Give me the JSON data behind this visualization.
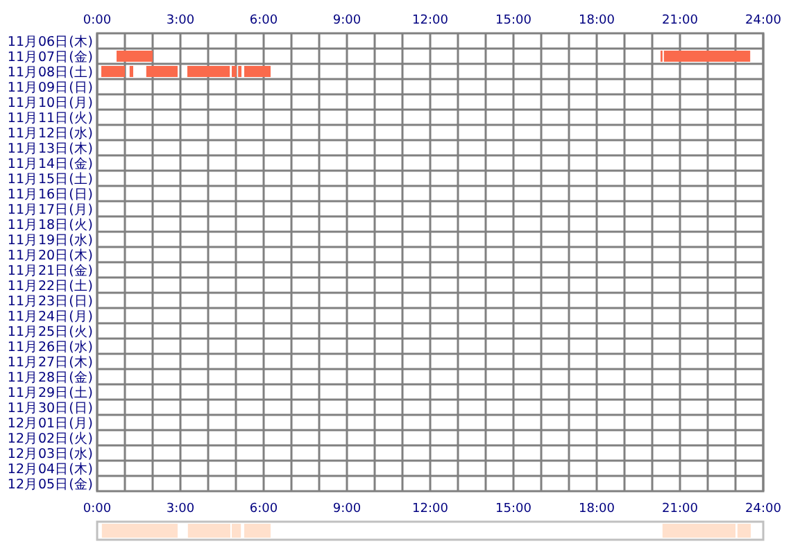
{
  "chart_data": [
    {
      "type": "bar",
      "orientation": "horizontal",
      "grid": true,
      "categories": [
        "11月06日(木)",
        "11月07日(金)",
        "11月08日(土)",
        "11月09日(日)",
        "11月10日(月)",
        "11月11日(火)",
        "11月12日(水)",
        "11月13日(木)",
        "11月14日(金)",
        "11月15日(土)",
        "11月16日(日)",
        "11月17日(月)",
        "11月18日(火)",
        "11月19日(水)",
        "11月20日(木)",
        "11月21日(金)",
        "11月22日(土)",
        "11月23日(日)",
        "11月24日(月)",
        "11月25日(火)",
        "11月26日(水)",
        "11月27日(木)",
        "11月28日(金)",
        "11月29日(土)",
        "11月30日(日)",
        "12月01日(月)",
        "12月02日(火)",
        "12月03日(水)",
        "12月04日(木)",
        "12月05日(金)"
      ],
      "xlim": [
        0,
        24
      ],
      "xticks": [
        {
          "value": 0,
          "label": "0:00"
        },
        {
          "value": 1,
          "label": null
        },
        {
          "value": 2,
          "label": null
        },
        {
          "value": 3,
          "label": "3:00"
        },
        {
          "value": 4,
          "label": null
        },
        {
          "value": 5,
          "label": null
        },
        {
          "value": 6,
          "label": "6:00"
        },
        {
          "value": 7,
          "label": null
        },
        {
          "value": 8,
          "label": null
        },
        {
          "value": 9,
          "label": "9:00"
        },
        {
          "value": 10,
          "label": null
        },
        {
          "value": 11,
          "label": null
        },
        {
          "value": 12,
          "label": "12:00"
        },
        {
          "value": 13,
          "label": null
        },
        {
          "value": 14,
          "label": null
        },
        {
          "value": 15,
          "label": "15:00"
        },
        {
          "value": 16,
          "label": null
        },
        {
          "value": 17,
          "label": null
        },
        {
          "value": 18,
          "label": "18:00"
        },
        {
          "value": 19,
          "label": null
        },
        {
          "value": 20,
          "label": null
        },
        {
          "value": 21,
          "label": "21:00"
        },
        {
          "value": 22,
          "label": null
        },
        {
          "value": 23,
          "label": null
        },
        {
          "value": 24,
          "label": "24:00"
        }
      ],
      "series": [
        {
          "color": "#fa6a4c",
          "base": [
            null,
            0.7,
            0.15,
            null,
            null,
            null,
            null,
            null,
            null,
            null,
            null,
            null,
            null,
            null,
            null,
            null,
            null,
            null,
            null,
            null,
            null,
            null,
            null,
            null,
            null,
            null,
            null,
            null,
            null,
            null
          ],
          "values": [
            null,
            1.3,
            0.85,
            null,
            null,
            null,
            null,
            null,
            null,
            null,
            null,
            null,
            null,
            null,
            null,
            null,
            null,
            null,
            null,
            null,
            null,
            null,
            null,
            null,
            null,
            null,
            null,
            null,
            null,
            null
          ]
        },
        {
          "color": "#fa6a4c",
          "base": [
            null,
            20.3,
            1.17,
            null,
            null,
            null,
            null,
            null,
            null,
            null,
            null,
            null,
            null,
            null,
            null,
            null,
            null,
            null,
            null,
            null,
            null,
            null,
            null,
            null,
            null,
            null,
            null,
            null,
            null,
            null
          ],
          "values": [
            null,
            0.07,
            0.13,
            null,
            null,
            null,
            null,
            null,
            null,
            null,
            null,
            null,
            null,
            null,
            null,
            null,
            null,
            null,
            null,
            null,
            null,
            null,
            null,
            null,
            null,
            null,
            null,
            null,
            null,
            null
          ]
        },
        {
          "color": "#fa6a4c",
          "base": [
            null,
            20.42,
            1.77,
            null,
            null,
            null,
            null,
            null,
            null,
            null,
            null,
            null,
            null,
            null,
            null,
            null,
            null,
            null,
            null,
            null,
            null,
            null,
            null,
            null,
            null,
            null,
            null,
            null,
            null,
            null
          ],
          "values": [
            null,
            3.11,
            1.13,
            null,
            null,
            null,
            null,
            null,
            null,
            null,
            null,
            null,
            null,
            null,
            null,
            null,
            null,
            null,
            null,
            null,
            null,
            null,
            null,
            null,
            null,
            null,
            null,
            null,
            null,
            null
          ]
        },
        {
          "color": "#fa6a4c",
          "base": [
            null,
            null,
            3.25,
            null,
            null,
            null,
            null,
            null,
            null,
            null,
            null,
            null,
            null,
            null,
            null,
            null,
            null,
            null,
            null,
            null,
            null,
            null,
            null,
            null,
            null,
            null,
            null,
            null,
            null,
            null
          ],
          "values": [
            null,
            null,
            1.53,
            null,
            null,
            null,
            null,
            null,
            null,
            null,
            null,
            null,
            null,
            null,
            null,
            null,
            null,
            null,
            null,
            null,
            null,
            null,
            null,
            null,
            null,
            null,
            null,
            null,
            null,
            null
          ]
        },
        {
          "color": "#fa6a4c",
          "base": [
            null,
            null,
            4.85,
            null,
            null,
            null,
            null,
            null,
            null,
            null,
            null,
            null,
            null,
            null,
            null,
            null,
            null,
            null,
            null,
            null,
            null,
            null,
            null,
            null,
            null,
            null,
            null,
            null,
            null,
            null
          ],
          "values": [
            null,
            null,
            0.17,
            null,
            null,
            null,
            null,
            null,
            null,
            null,
            null,
            null,
            null,
            null,
            null,
            null,
            null,
            null,
            null,
            null,
            null,
            null,
            null,
            null,
            null,
            null,
            null,
            null,
            null,
            null
          ]
        },
        {
          "color": "#fa6a4c",
          "base": [
            null,
            null,
            5.08,
            null,
            null,
            null,
            null,
            null,
            null,
            null,
            null,
            null,
            null,
            null,
            null,
            null,
            null,
            null,
            null,
            null,
            null,
            null,
            null,
            null,
            null,
            null,
            null,
            null,
            null,
            null
          ],
          "values": [
            null,
            null,
            0.12,
            null,
            null,
            null,
            null,
            null,
            null,
            null,
            null,
            null,
            null,
            null,
            null,
            null,
            null,
            null,
            null,
            null,
            null,
            null,
            null,
            null,
            null,
            null,
            null,
            null,
            null,
            null
          ]
        },
        {
          "color": "#fa6a4c",
          "base": [
            null,
            null,
            5.3,
            null,
            null,
            null,
            null,
            null,
            null,
            null,
            null,
            null,
            null,
            null,
            null,
            null,
            null,
            null,
            null,
            null,
            null,
            null,
            null,
            null,
            null,
            null,
            null,
            null,
            null,
            null
          ],
          "values": [
            null,
            null,
            0.95,
            null,
            null,
            null,
            null,
            null,
            null,
            null,
            null,
            null,
            null,
            null,
            null,
            null,
            null,
            null,
            null,
            null,
            null,
            null,
            null,
            null,
            null,
            null,
            null,
            null,
            null,
            null
          ]
        }
      ]
    },
    {
      "type": "bar",
      "orientation": "horizontal",
      "grid": false,
      "categories": [
        null
      ],
      "xlim": [
        0,
        24
      ],
      "xticks": [
        {
          "value": 0,
          "label": "0:00"
        },
        {
          "value": 3,
          "label": "3:00"
        },
        {
          "value": 6,
          "label": "6:00"
        },
        {
          "value": 9,
          "label": "9:00"
        },
        {
          "value": 12,
          "label": "12:00"
        },
        {
          "value": 15,
          "label": "15:00"
        },
        {
          "value": 18,
          "label": "18:00"
        },
        {
          "value": 21,
          "label": "21:00"
        },
        {
          "value": 24,
          "label": "24:00"
        }
      ],
      "series": [
        {
          "color": "#ffe0cc",
          "base": [
            0.17
          ],
          "values": [
            2.73
          ]
        },
        {
          "color": "#ffe0cc",
          "base": [
            3.27
          ],
          "values": [
            1.53
          ]
        },
        {
          "color": "#ffe0cc",
          "base": [
            4.85
          ],
          "values": [
            0.33
          ]
        },
        {
          "color": "#ffe0cc",
          "base": [
            5.3
          ],
          "values": [
            0.95
          ]
        },
        {
          "color": "#ffe0cc",
          "base": [
            20.37
          ],
          "values": [
            2.63
          ]
        },
        {
          "color": "#ffe0cc",
          "base": [
            23.07
          ],
          "values": [
            0.48
          ]
        }
      ]
    }
  ]
}
